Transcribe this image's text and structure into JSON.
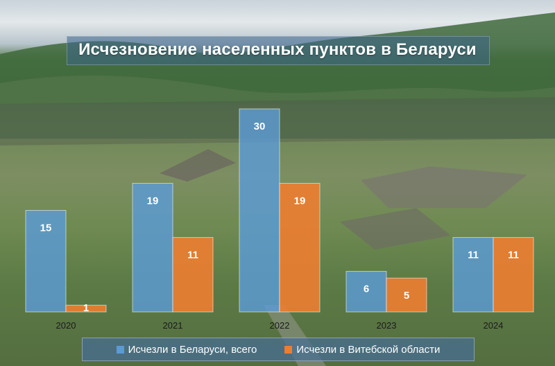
{
  "title": "Исчезновение населенных пунктов в Беларуси",
  "colors": {
    "belarus": "#5b9bd5",
    "vitebsk": "#ed7d31"
  },
  "chart_data": {
    "type": "bar",
    "title": "Исчезновение населенных пунктов в Беларуси",
    "categories": [
      "2020",
      "2021",
      "2022",
      "2023",
      "2024"
    ],
    "series": [
      {
        "name": "Исчезли в Беларуси, всего",
        "values": [
          15,
          19,
          30,
          6,
          11
        ]
      },
      {
        "name": "Исчезли в Витебской области",
        "values": [
          1,
          11,
          19,
          5,
          11
        ]
      }
    ],
    "ylim": [
      0,
      30
    ],
    "grid": false,
    "legend": "bottom",
    "data_labels": true
  }
}
